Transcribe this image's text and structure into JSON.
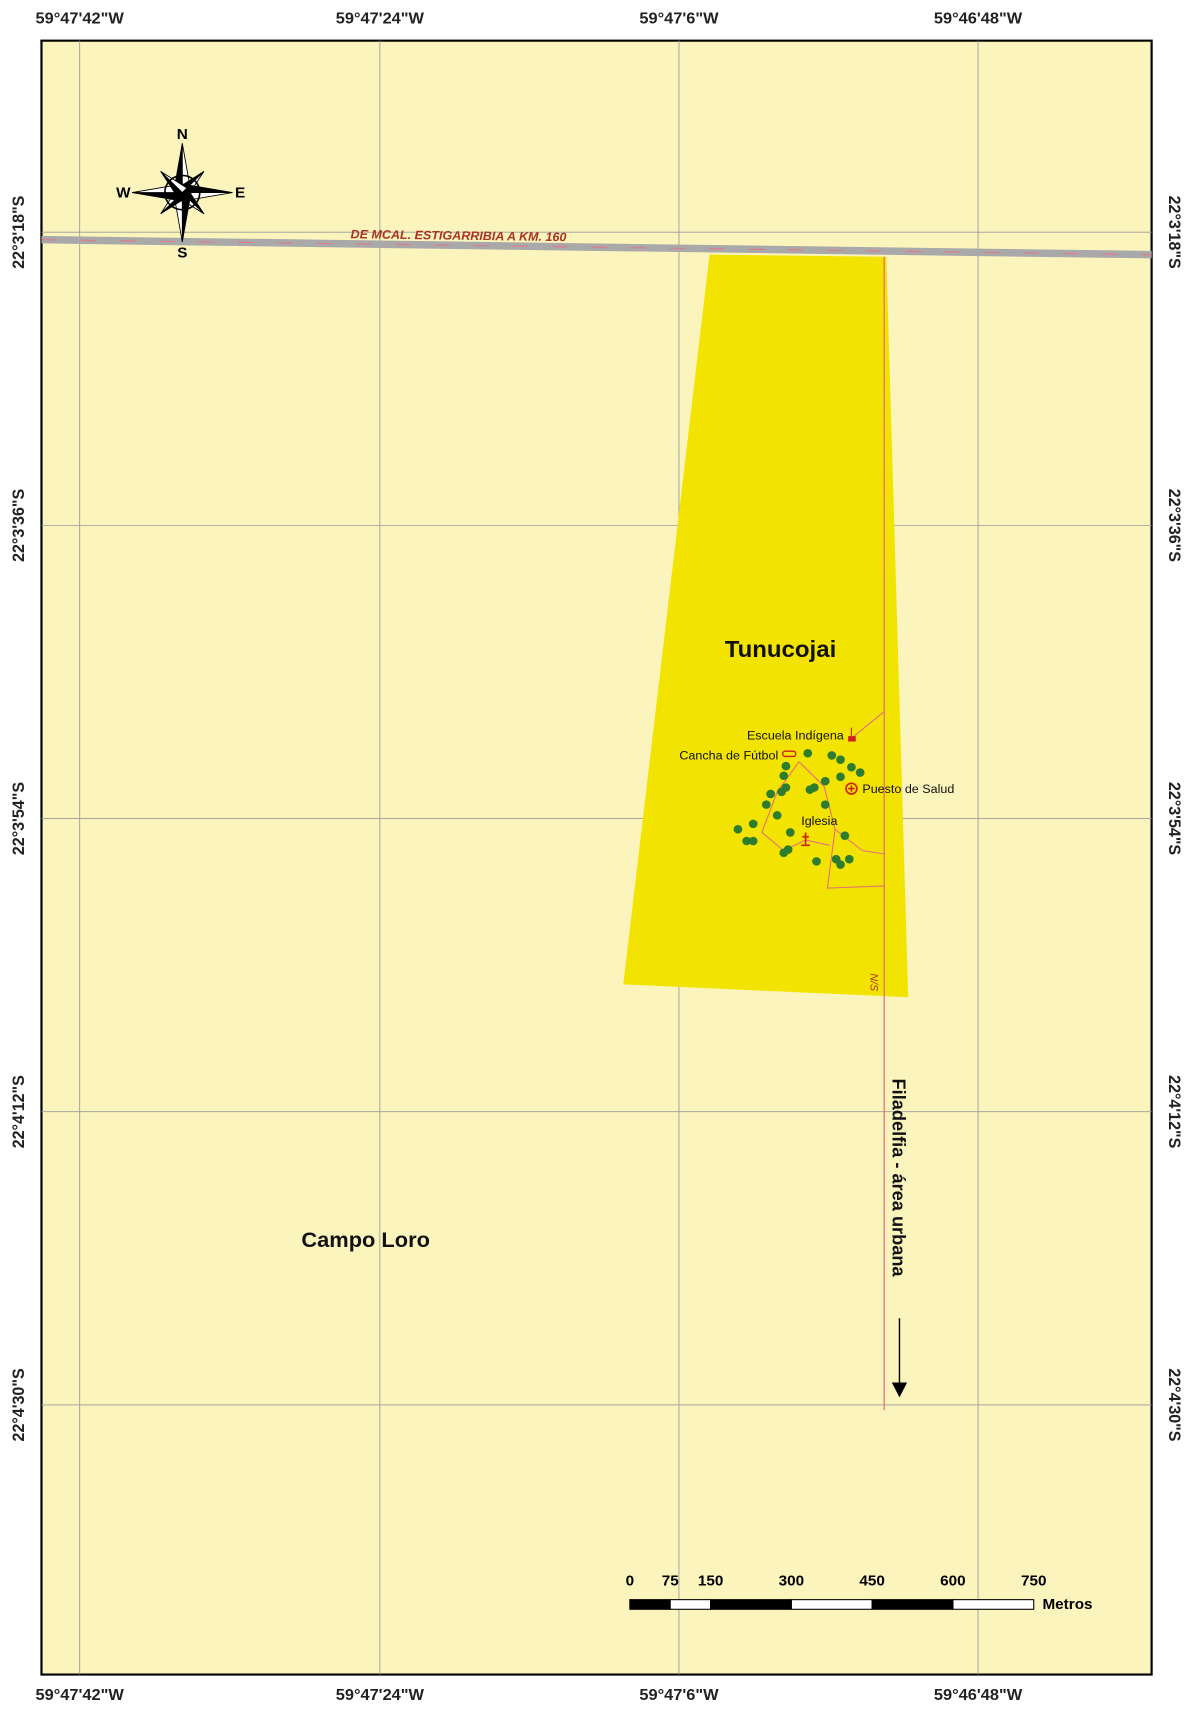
{
  "graticule": {
    "longitudes": [
      "59°47'42\"W",
      "59°47'24\"W",
      "59°47'6\"W",
      "59°46'48\"W"
    ],
    "latitudes": [
      "22°3'18\"S",
      "22°3'36\"S",
      "22°3'54\"S",
      "22°4'12\"S",
      "22°4'30\"S"
    ]
  },
  "compass": {
    "n": "N",
    "e": "E",
    "s": "S",
    "w": "W"
  },
  "road_label": "DE MCAL. ESTIGARRIBIA A KM. 160",
  "places": {
    "tunucojai": "Tunucojai",
    "campo_loro": "Campo Loro",
    "filadelfia": "Filadelfia - área urbana",
    "ns": "N/S"
  },
  "features": [
    "Escuela Indígena",
    "Cancha de Fútbol",
    "Puesto de Salud",
    "Iglesia"
  ],
  "scale_bar": {
    "ticks": [
      0,
      75,
      150,
      300,
      450,
      600,
      750
    ],
    "unit": "Metros"
  }
}
